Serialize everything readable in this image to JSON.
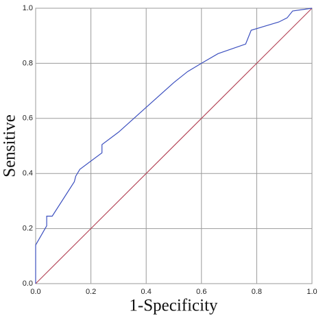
{
  "chart_data": {
    "type": "line",
    "x_label": "1-Specificity",
    "y_label": "Sensitive",
    "xlim": [
      0,
      1
    ],
    "ylim": [
      0,
      1
    ],
    "xticks": [
      {
        "value": 0,
        "label": "0.0"
      },
      0.2,
      0.4,
      0.6,
      0.8,
      {
        "value": 1,
        "label": "1.0"
      }
    ],
    "yticks": [
      {
        "value": 0,
        "label": "0.0"
      },
      0.2,
      0.4,
      0.6,
      0.8,
      {
        "value": 1,
        "label": "1.0"
      }
    ],
    "grid": true,
    "series": [
      {
        "color": "#3b4fbf",
        "x": [
          0,
          0,
          0.04,
          0.04,
          0.06,
          0.14,
          0.145,
          0.16,
          0.24,
          0.24,
          0.3,
          0.4,
          0.5,
          0.55,
          0.6,
          0.66,
          0.76,
          0.78,
          0.88,
          0.91,
          0.93,
          1
        ],
        "values": [
          0,
          0.14,
          0.21,
          0.245,
          0.245,
          0.37,
          0.39,
          0.415,
          0.475,
          0.505,
          0.55,
          0.64,
          0.73,
          0.77,
          0.8,
          0.835,
          0.87,
          0.92,
          0.95,
          0.965,
          0.99,
          1
        ]
      },
      {
        "color": "#b5475a",
        "x": [
          0,
          1
        ],
        "values": [
          0,
          1
        ]
      }
    ]
  }
}
